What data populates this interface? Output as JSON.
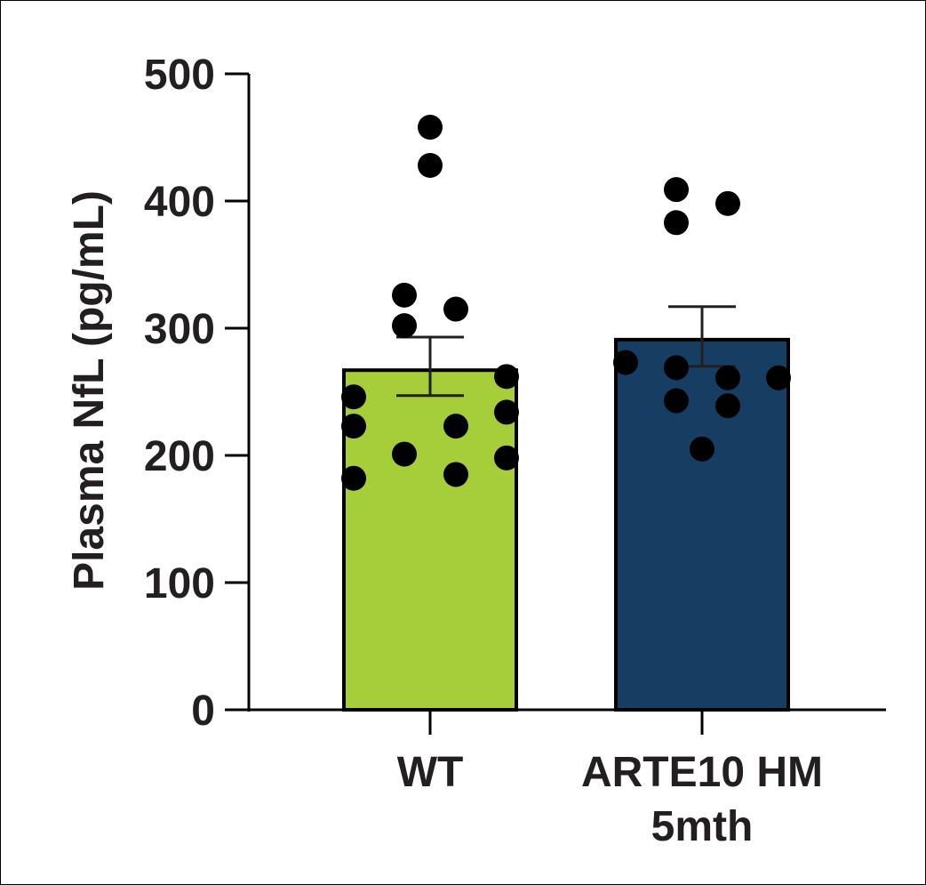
{
  "chart_data": {
    "type": "bar",
    "title": "",
    "xlabel": "",
    "ylabel": "Plasma NfL (pg/mL)",
    "ylim": [
      0,
      500
    ],
    "yticks": [
      "0",
      "100",
      "200",
      "300",
      "400",
      "500"
    ],
    "categories": [
      {
        "lines": [
          "WT"
        ]
      },
      {
        "lines": [
          "ARTE10 HM",
          "5mth"
        ]
      }
    ],
    "series": [
      {
        "bars": [
          {
            "value": 267,
            "sem_low": 247,
            "sem_high": 293,
            "color": "#a6ce39"
          },
          {
            "value": 291,
            "sem_low": 270,
            "sem_high": 317,
            "color": "#163e63"
          }
        ]
      }
    ],
    "points": [
      [
        458,
        428,
        326,
        302,
        315,
        246,
        223,
        182,
        201,
        223,
        185,
        262,
        234,
        198
      ],
      [
        409,
        383,
        398,
        273,
        269,
        243,
        205,
        261,
        239,
        261
      ]
    ],
    "point_color": "#000000",
    "grid": false,
    "legend": "none"
  }
}
